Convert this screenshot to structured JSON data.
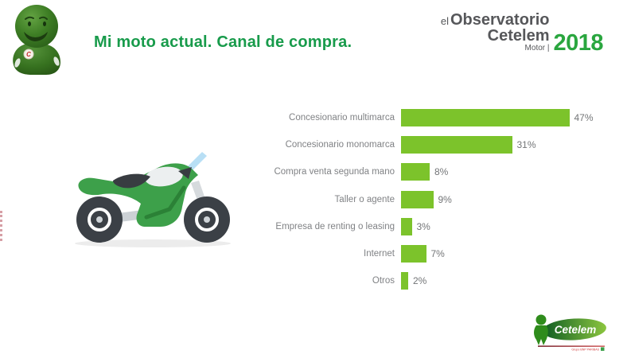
{
  "slide": {
    "background": "#ffffff"
  },
  "title": {
    "text": "Mi moto actual. Canal de compra.",
    "color": "#189b4b"
  },
  "observatorio_logo": {
    "el": "el",
    "observatorio": "Observatorio",
    "cetelem": "Cetelem",
    "motor": "Motor |",
    "year": "2018",
    "year_color": "#2aa63f",
    "text_color": "#56575a"
  },
  "chart_data": {
    "type": "bar",
    "orientation": "horizontal",
    "title": "Mi moto actual. Canal de compra.",
    "categories": [
      "Concesionario multimarca",
      "Concesionario monomarca",
      "Compra venta segunda mano",
      "Taller o agente",
      "Empresa de renting o leasing",
      "Internet",
      "Otros"
    ],
    "values": [
      47,
      31,
      8,
      9,
      3,
      7,
      2
    ],
    "value_labels": [
      "47%",
      "31%",
      "8%",
      "9%",
      "3%",
      "7%",
      "2%"
    ],
    "unit": "percent",
    "xlim": [
      0,
      50
    ],
    "grid": false,
    "legend": false,
    "bar_color": "#7cc32b",
    "category_label_color": "#808285",
    "value_label_color": "#737577"
  },
  "mascot": {
    "badge_letter": "C"
  },
  "footer_logo": {
    "brand": "Cetelem",
    "subtext": "Grupo BNP PARIBAS"
  }
}
